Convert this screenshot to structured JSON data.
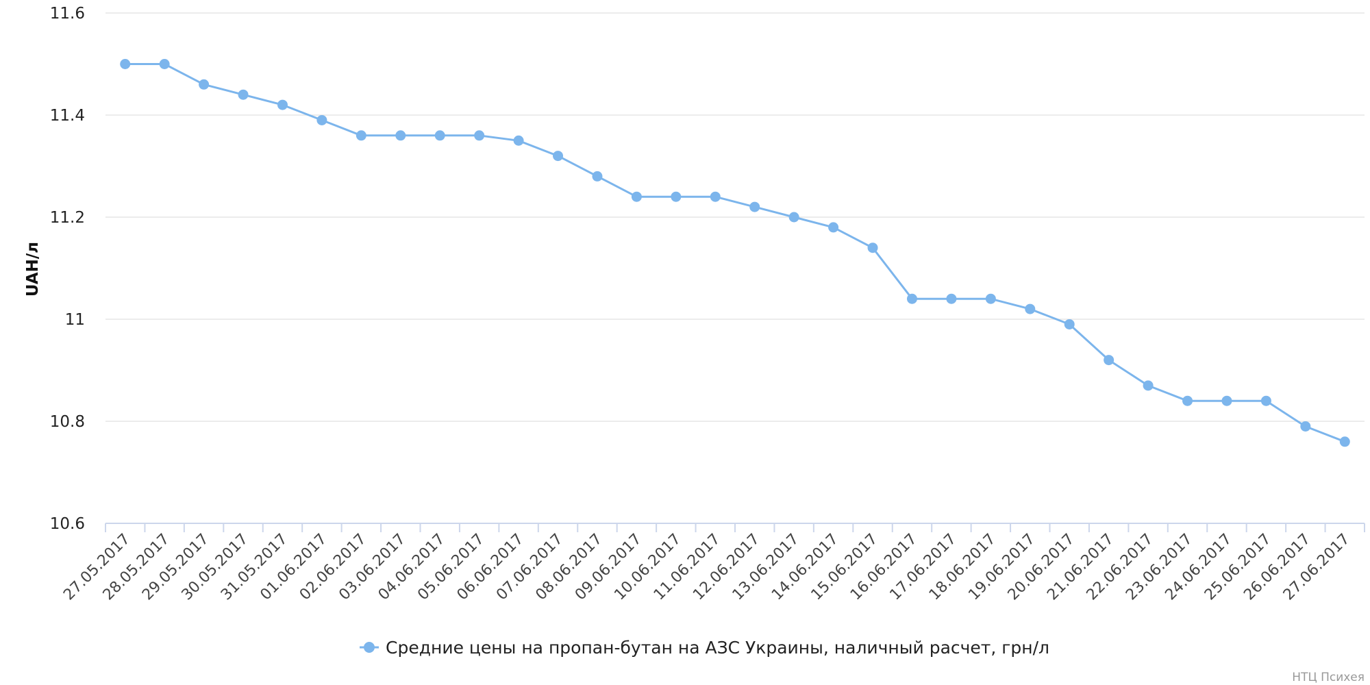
{
  "chart_data": {
    "type": "line",
    "title": "",
    "xlabel": "",
    "ylabel": "UAH/л",
    "ylim": [
      10.6,
      11.6
    ],
    "yticks": [
      "10.6",
      "10.8",
      "11",
      "11.2",
      "11.4",
      "11.6"
    ],
    "grid": true,
    "legend_position": "bottom",
    "categories": [
      "27.05.2017",
      "28.05.2017",
      "29.05.2017",
      "30.05.2017",
      "31.05.2017",
      "01.06.2017",
      "02.06.2017",
      "03.06.2017",
      "04.06.2017",
      "05.06.2017",
      "06.06.2017",
      "07.06.2017",
      "08.06.2017",
      "09.06.2017",
      "10.06.2017",
      "11.06.2017",
      "12.06.2017",
      "13.06.2017",
      "14.06.2017",
      "15.06.2017",
      "16.06.2017",
      "17.06.2017",
      "18.06.2017",
      "19.06.2017",
      "20.06.2017",
      "21.06.2017",
      "22.06.2017",
      "23.06.2017",
      "24.06.2017",
      "25.06.2017",
      "26.06.2017",
      "27.06.2017"
    ],
    "series": [
      {
        "name": "Средние цены на пропан-бутан на АЗС Украины, наличный расчет, грн/л",
        "color": "#7cb5ec",
        "values": [
          11.5,
          11.5,
          11.46,
          11.44,
          11.42,
          11.39,
          11.36,
          11.36,
          11.36,
          11.36,
          11.35,
          11.32,
          11.28,
          11.24,
          11.24,
          11.24,
          11.22,
          11.2,
          11.18,
          11.14,
          11.04,
          11.04,
          11.04,
          11.02,
          10.99,
          10.92,
          10.87,
          10.84,
          10.84,
          10.84,
          10.79,
          10.76
        ]
      }
    ]
  },
  "credit": "НТЦ Психея"
}
